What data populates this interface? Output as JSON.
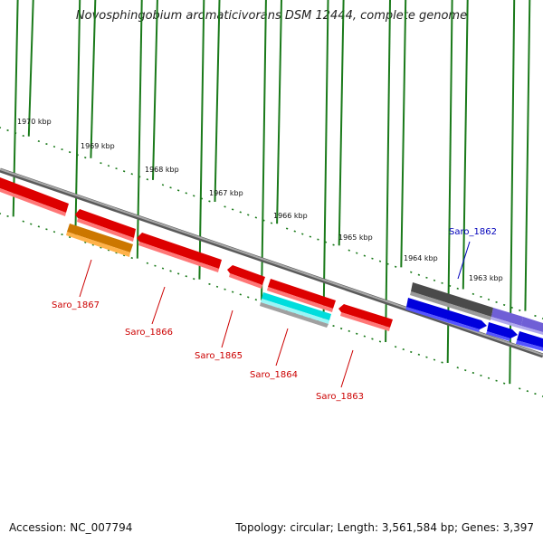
{
  "title": "Novosphingobium aromaticivorans DSM 12444, complete genome",
  "footer": {
    "accession": "Accession: NC_007794",
    "info": "Topology: circular; Length: 3,561,584 bp; Genes: 3,397"
  },
  "scale_labels": [
    "1970 kbp",
    "1969 kbp",
    "1968 kbp",
    "1967 kbp",
    "1966 kbp",
    "1965 kbp",
    "1964 kbp",
    "1963 kbp"
  ],
  "gene_labels": [
    {
      "name": "Saro_1867",
      "color": "#cc0000"
    },
    {
      "name": "Saro_1866",
      "color": "#cc0000"
    },
    {
      "name": "Saro_1865",
      "color": "#cc0000"
    },
    {
      "name": "Saro_1864",
      "color": "#cc0000"
    },
    {
      "name": "Saro_1863",
      "color": "#cc0000"
    },
    {
      "name": "Saro_1862",
      "color": "#0000bb"
    }
  ],
  "colors": {
    "backbone": "#888888",
    "tick": "#1a7a1a",
    "cds_red": "#ff0000",
    "orange": "#ff9900",
    "cyan": "#00e5e5",
    "gray_feature": "#666666",
    "blue": "#0000ee",
    "purple": "#7766dd"
  }
}
